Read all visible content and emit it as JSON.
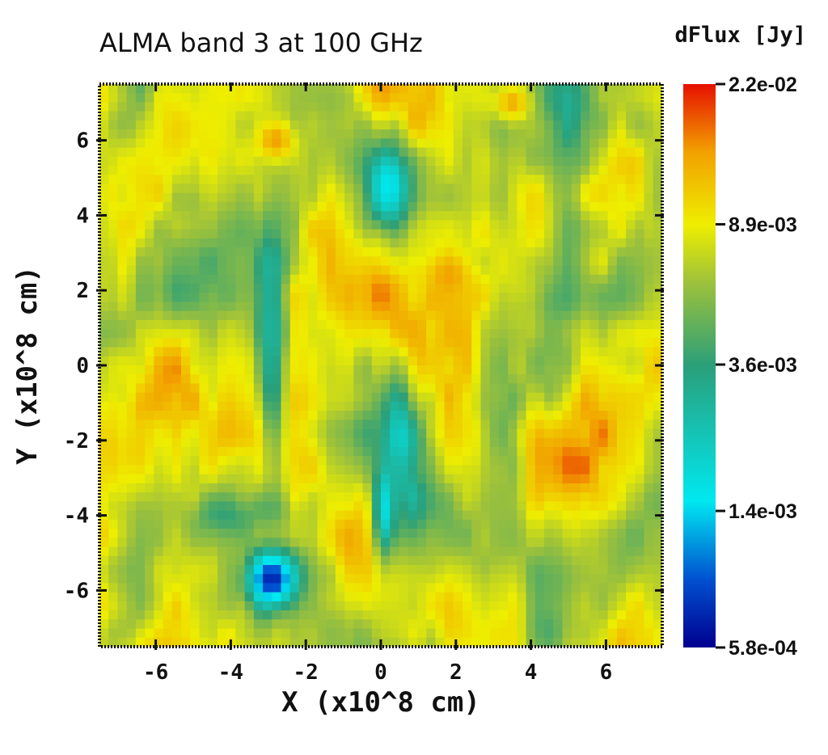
{
  "chart_data": {
    "type": "heatmap",
    "title": "ALMA band 3 at 100 GHz",
    "xlabel": "X (x10^8 cm)",
    "ylabel": "Y (x10^8 cm)",
    "xlim": [
      -7.5,
      7.5
    ],
    "ylim": [
      -7.5,
      7.5
    ],
    "x_ticks": [
      "-6",
      "-4",
      "-2",
      "0",
      "2",
      "4",
      "6"
    ],
    "x_tick_values": [
      -6,
      -4,
      -2,
      0,
      2,
      4,
      6
    ],
    "y_ticks": [
      "6",
      "4",
      "2",
      "0",
      "-2",
      "-4",
      "-6"
    ],
    "y_tick_values": [
      6,
      4,
      2,
      0,
      -2,
      -4,
      -6
    ],
    "colorbar": {
      "label": "dFlux [Jy]",
      "scale": "log",
      "min": 0.00058,
      "max": 0.022,
      "tick_labels": [
        "2.2e-02",
        "8.9e-03",
        "3.6e-03",
        "1.4e-03",
        "5.8e-04"
      ],
      "tick_values": [
        0.022,
        0.0089,
        0.0036,
        0.0014,
        0.00058
      ],
      "colormap": [
        "#00008f",
        "#0050d0",
        "#00e8f0",
        "#2a9f7a",
        "#9fc23a",
        "#eeee00",
        "#f2a000",
        "#e61000"
      ]
    },
    "grid": false,
    "features": [
      {
        "name": "low-flux blob",
        "x": -2.9,
        "y": -5.7,
        "value": 0.0007
      },
      {
        "name": "cyan lobe",
        "x": 0.2,
        "y": 4.8,
        "value": 0.0015
      },
      {
        "name": "cyan streak",
        "x": 0.1,
        "y": -3.8,
        "value": 0.0017
      },
      {
        "name": "green streak",
        "x": -2.9,
        "y": 1.0,
        "value": 0.003
      },
      {
        "name": "orange knot",
        "x": -2.8,
        "y": 6.0,
        "value": 0.014
      },
      {
        "name": "orange knot",
        "x": 1.8,
        "y": 2.4,
        "value": 0.014
      },
      {
        "name": "orange knot",
        "x": 3.5,
        "y": 7.0,
        "value": 0.013
      }
    ]
  }
}
